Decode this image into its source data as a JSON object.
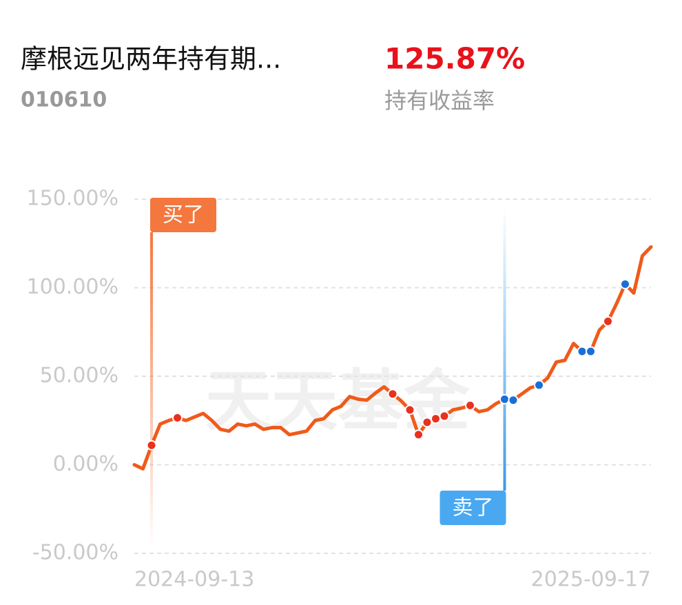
{
  "header": {
    "title": "摩根远见两年持有期...",
    "code": "010610",
    "return": "125.87%"
  },
  "chart_data": {
    "type": "line",
    "watermark": "天天基金",
    "categories": [
      "2024-09-13",
      null,
      null,
      null,
      null,
      null,
      null,
      null,
      null,
      null,
      null,
      null,
      null,
      null,
      null,
      null,
      null,
      null,
      null,
      null,
      null,
      null,
      null,
      null,
      null,
      null,
      null,
      null,
      null,
      null,
      null,
      null,
      null,
      null,
      null,
      null,
      null,
      null,
      null,
      null,
      null,
      null,
      null,
      null,
      null,
      null,
      null,
      null,
      null,
      null,
      null,
      null,
      null,
      null,
      null,
      null,
      null,
      null,
      null,
      null,
      "2025-09-17"
    ],
    "ylim": [
      -50,
      150
    ],
    "yticks": [
      {
        "value": -50,
        "label": "-50.00%"
      },
      {
        "value": 0,
        "label": "0.00%"
      },
      {
        "value": 50,
        "label": "50.00%"
      },
      {
        "value": 100,
        "label": "100.00%"
      },
      {
        "value": 150,
        "label": "150.00%"
      }
    ],
    "grid": true,
    "series": [
      {
        "name": "持有收益率",
        "color": "#f05a1a",
        "values": [
          0,
          -2.3,
          11,
          23,
          25,
          26.5,
          25,
          27,
          29,
          25,
          20,
          19,
          23,
          22,
          23,
          20,
          21,
          21,
          17,
          18,
          19,
          25,
          26,
          31,
          33,
          38.5,
          37,
          36.5,
          40.5,
          44,
          40,
          36,
          31,
          17,
          24,
          26,
          27.5,
          31,
          32,
          33.5,
          30,
          31,
          34.5,
          37,
          36.5,
          40,
          43.5,
          45,
          49,
          58,
          59,
          68.5,
          64,
          64,
          76,
          81,
          91,
          102,
          97,
          118,
          123
        ]
      },
      {
        "name": "买了",
        "color": "#e8321e",
        "values": [
          null,
          null,
          11,
          null,
          null,
          26.5,
          null,
          null,
          null,
          null,
          null,
          null,
          null,
          null,
          null,
          null,
          null,
          null,
          null,
          null,
          null,
          null,
          null,
          null,
          null,
          null,
          null,
          null,
          null,
          null,
          40,
          null,
          31,
          17,
          24,
          26,
          27.5,
          null,
          null,
          33.5,
          null,
          null,
          null,
          null,
          null,
          null,
          null,
          null,
          null,
          null,
          null,
          null,
          null,
          null,
          null,
          81,
          null,
          null,
          null,
          null,
          null
        ]
      },
      {
        "name": "卖了",
        "color": "#1a6ed8",
        "values": [
          null,
          null,
          null,
          null,
          null,
          null,
          null,
          null,
          null,
          null,
          null,
          null,
          null,
          null,
          null,
          null,
          null,
          null,
          null,
          null,
          null,
          null,
          null,
          null,
          null,
          null,
          null,
          null,
          null,
          null,
          null,
          null,
          null,
          null,
          null,
          null,
          null,
          null,
          null,
          null,
          null,
          null,
          null,
          37,
          36.5,
          null,
          null,
          45,
          null,
          null,
          null,
          null,
          64,
          64,
          null,
          null,
          null,
          102,
          null,
          null,
          null
        ]
      }
    ]
  }
}
